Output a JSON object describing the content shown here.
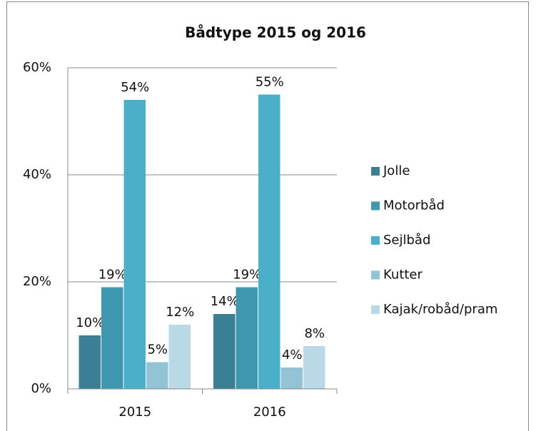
{
  "chart_data": {
    "type": "bar",
    "title": "Bådtype 2015 og 2016",
    "categories": [
      "2015",
      "2016"
    ],
    "series": [
      {
        "name": "Jolle",
        "color": "#3a7f93",
        "values": [
          10,
          14
        ],
        "value_labels": [
          "10%",
          "14%"
        ]
      },
      {
        "name": "Motorbåd",
        "color": "#3f97b0",
        "values": [
          19,
          19
        ],
        "value_labels": [
          "19%",
          "19%"
        ]
      },
      {
        "name": "Sejlbåd",
        "color": "#4aafc9",
        "values": [
          54,
          55
        ],
        "value_labels": [
          "54%",
          "55%"
        ]
      },
      {
        "name": "Kutter",
        "color": "#93c4d6",
        "values": [
          5,
          4
        ],
        "value_labels": [
          "5%",
          "4%"
        ]
      },
      {
        "name": "Kajak/robåd/pram",
        "color": "#b9d9e6",
        "values": [
          12,
          8
        ],
        "value_labels": [
          "12%",
          "8%"
        ]
      }
    ],
    "ylim": [
      0,
      60
    ],
    "yticks": [
      {
        "value": 0,
        "label": "0%"
      },
      {
        "value": 20,
        "label": "20%"
      },
      {
        "value": 40,
        "label": "40%"
      },
      {
        "value": 60,
        "label": "60%"
      }
    ],
    "grid": true,
    "legend": "right"
  }
}
